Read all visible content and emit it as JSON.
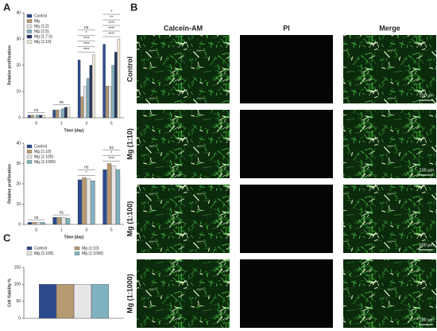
{
  "panels": [
    "A",
    "B",
    "C"
  ],
  "chart_data": [
    {
      "type": "bar",
      "ylabel": "Relative proliferation",
      "xlabel": "Time (day)",
      "categories": [
        "0",
        "1",
        "3",
        "5"
      ],
      "series": [
        {
          "name": "Control",
          "color": "#2b4a8c",
          "values": [
            1,
            3,
            22,
            28
          ]
        },
        {
          "name": "Mg",
          "color": "#b89a72",
          "values": [
            1,
            3,
            8,
            12
          ]
        },
        {
          "name": "Mg (1:2)",
          "color": "#e6e6e6",
          "values": [
            1,
            3,
            12,
            12
          ]
        },
        {
          "name": "Mg (1:5)",
          "color": "#7fb2bf",
          "values": [
            1,
            3.5,
            15,
            20
          ]
        },
        {
          "name": "Mg (1:7.5)",
          "color": "#23355e",
          "values": [
            1,
            4,
            20,
            25
          ]
        },
        {
          "name": "Mg (1:10)",
          "color": "#efe8d8",
          "values": [
            1,
            4,
            24,
            30
          ]
        }
      ],
      "ylim": [
        0,
        40
      ],
      "yticks": [
        0,
        10,
        20,
        30,
        40
      ],
      "annotations": [
        [
          "ns"
        ],
        [
          "ns"
        ],
        [
          "ns",
          "*",
          "****",
          "****",
          "****"
        ],
        [
          "*",
          "**",
          "****",
          "****",
          "****"
        ]
      ]
    },
    {
      "type": "bar",
      "ylabel": "Relative proliferation",
      "xlabel": "Time (day)",
      "categories": [
        "0",
        "1",
        "3",
        "5"
      ],
      "series": [
        {
          "name": "Control",
          "color": "#2b4a8c",
          "values": [
            1,
            3.5,
            22,
            27
          ]
        },
        {
          "name": "Mg (1:10)",
          "color": "#b89a72",
          "values": [
            1,
            3.5,
            23,
            30
          ]
        },
        {
          "name": "Mg (1:100)",
          "color": "#e6e6e6",
          "values": [
            1,
            3.5,
            22.5,
            29
          ]
        },
        {
          "name": "Mg (1:1000)",
          "color": "#7fb2bf",
          "values": [
            1,
            3,
            21.5,
            27
          ]
        }
      ],
      "ylim": [
        0,
        40
      ],
      "yticks": [
        0,
        10,
        20,
        30,
        40
      ],
      "annotations": [
        [
          "ns"
        ],
        [
          "ns"
        ],
        [
          "ns",
          "*"
        ],
        [
          "ns",
          "*",
          "****"
        ]
      ]
    },
    {
      "type": "bar",
      "ylabel": "Cell Viability %",
      "categories": [
        null
      ],
      "series": [
        {
          "name": "Control",
          "color": "#2b4a8c",
          "values": [
            100
          ]
        },
        {
          "name": "Mg (1:10)",
          "color": "#b89a72",
          "values": [
            100
          ]
        },
        {
          "name": "Mg (1:100)",
          "color": "#e6e6e6",
          "values": [
            100
          ]
        },
        {
          "name": "Mg (1:1000)",
          "color": "#7fb2bf",
          "values": [
            100
          ]
        }
      ],
      "ylim": [
        0,
        150
      ],
      "yticks": [
        0,
        50,
        100,
        150
      ]
    }
  ],
  "image_grid": {
    "columns": [
      "Calcein-AM",
      "PI",
      "Merge"
    ],
    "rows": [
      "Control",
      "Mg (1:10)",
      "Mg (1:100)",
      "Mg (1:1000)"
    ],
    "scale_bar": "100 μm"
  }
}
